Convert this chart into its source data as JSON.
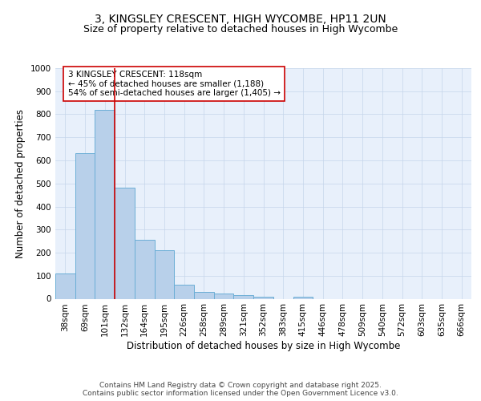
{
  "title": "3, KINGSLEY CRESCENT, HIGH WYCOMBE, HP11 2UN",
  "subtitle": "Size of property relative to detached houses in High Wycombe",
  "xlabel": "Distribution of detached houses by size in High Wycombe",
  "ylabel": "Number of detached properties",
  "bin_labels": [
    "38sqm",
    "69sqm",
    "101sqm",
    "132sqm",
    "164sqm",
    "195sqm",
    "226sqm",
    "258sqm",
    "289sqm",
    "321sqm",
    "352sqm",
    "383sqm",
    "415sqm",
    "446sqm",
    "478sqm",
    "509sqm",
    "540sqm",
    "572sqm",
    "603sqm",
    "635sqm",
    "666sqm"
  ],
  "bar_values": [
    110,
    630,
    820,
    480,
    255,
    210,
    62,
    28,
    22,
    15,
    10,
    0,
    10,
    0,
    0,
    0,
    0,
    0,
    0,
    0,
    0
  ],
  "bar_color": "#b8d0ea",
  "bar_edge_color": "#6baed6",
  "vline_x": 2.5,
  "vline_color": "#cc0000",
  "annotation_text": "3 KINGSLEY CRESCENT: 118sqm\n← 45% of detached houses are smaller (1,188)\n54% of semi-detached houses are larger (1,405) →",
  "annotation_box_color": "#ffffff",
  "annotation_box_edge": "#cc0000",
  "ylim": [
    0,
    1000
  ],
  "yticks": [
    0,
    100,
    200,
    300,
    400,
    500,
    600,
    700,
    800,
    900,
    1000
  ],
  "background_color": "#e8f0fb",
  "footer_text": "Contains HM Land Registry data © Crown copyright and database right 2025.\nContains public sector information licensed under the Open Government Licence v3.0.",
  "title_fontsize": 10,
  "subtitle_fontsize": 9,
  "axis_label_fontsize": 8.5,
  "tick_fontsize": 7.5,
  "annotation_fontsize": 7.5,
  "footer_fontsize": 6.5
}
